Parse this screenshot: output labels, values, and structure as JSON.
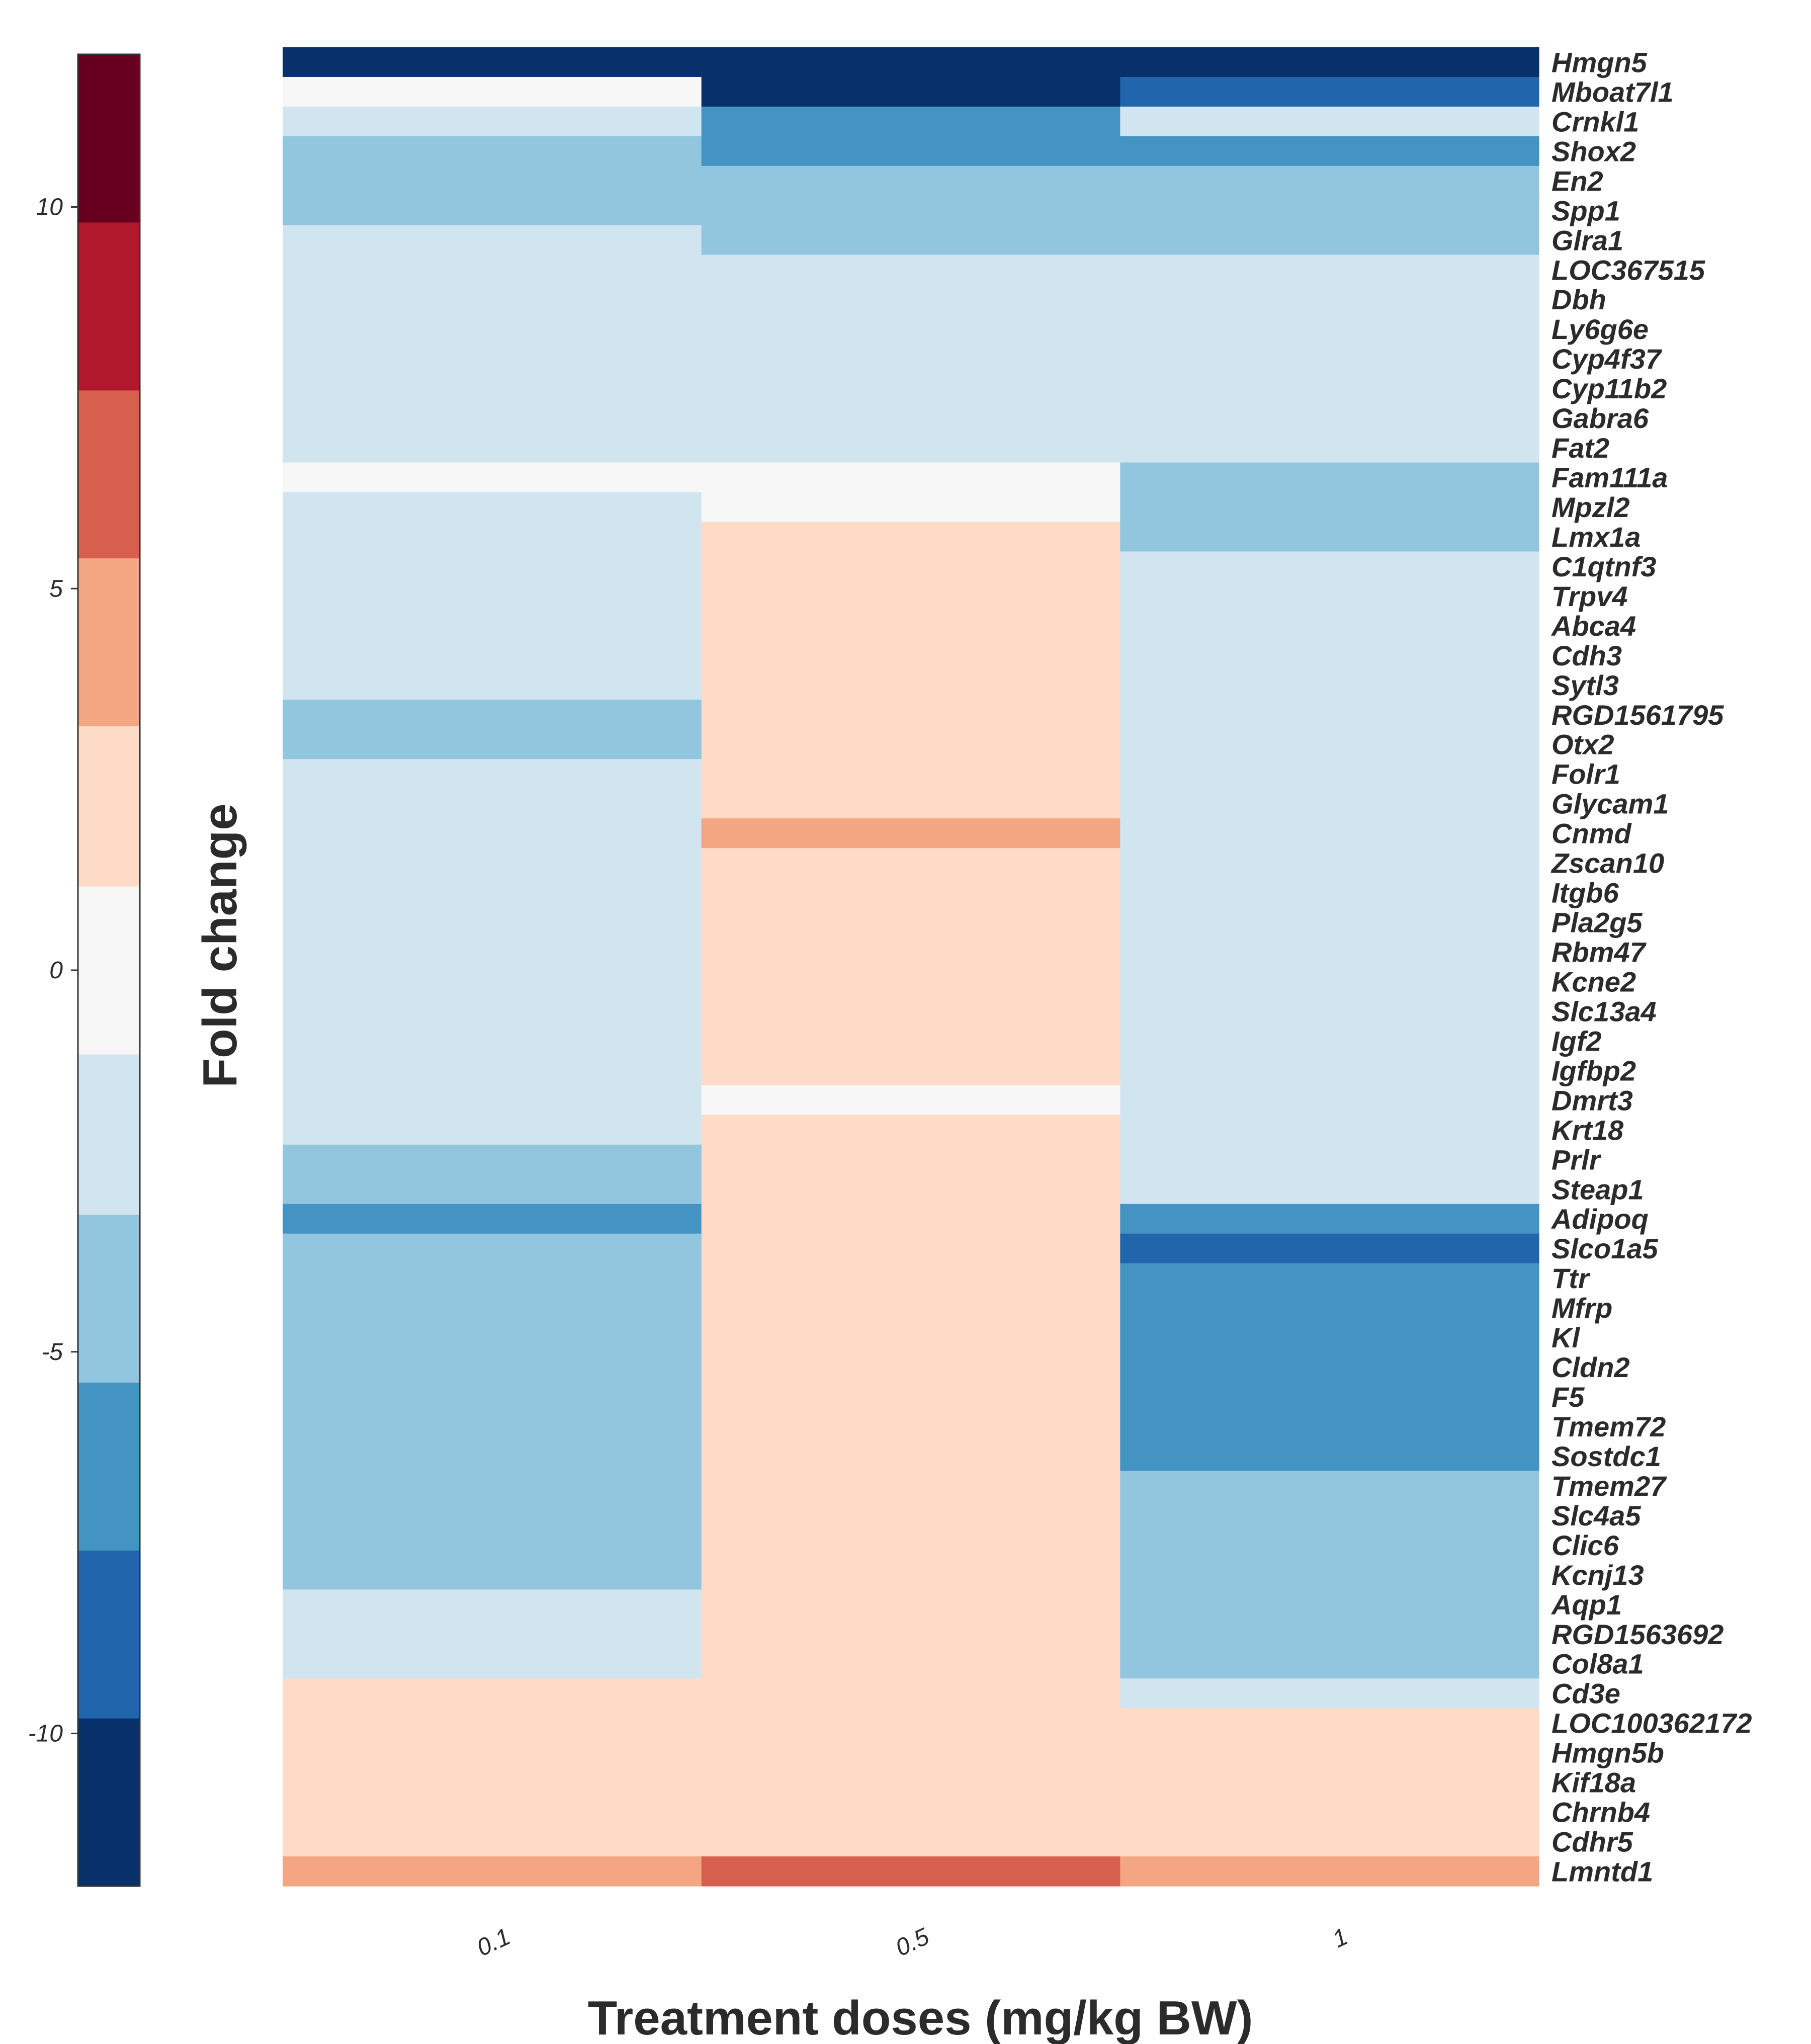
{
  "chart_data": {
    "type": "heatmap",
    "title": "",
    "xlabel": "Treatment doses (mg/kg BW)",
    "colorbar_label": "Fold change",
    "x": [
      "0.1",
      "0.5",
      "1"
    ],
    "colorbar_ticks": [
      {
        "value": 10,
        "label": "10"
      },
      {
        "value": 5,
        "label": "5"
      },
      {
        "value": 0,
        "label": "0"
      },
      {
        "value": -5,
        "label": "-5"
      },
      {
        "value": -10,
        "label": "-10"
      }
    ],
    "color_range": [
      -12,
      12
    ],
    "color_bins": [
      {
        "min": -12,
        "max": -9.8,
        "color": "#08306b"
      },
      {
        "min": -9.8,
        "max": -7.6,
        "color": "#2166ac"
      },
      {
        "min": -7.6,
        "max": -5.4,
        "color": "#4393c3"
      },
      {
        "min": -5.4,
        "max": -3.2,
        "color": "#92c5de"
      },
      {
        "min": -3.2,
        "max": -1.1,
        "color": "#d1e5f0"
      },
      {
        "min": -1.1,
        "max": 1.1,
        "color": "#f7f7f7"
      },
      {
        "min": 1.1,
        "max": 3.2,
        "color": "#fddbc7"
      },
      {
        "min": 3.2,
        "max": 5.4,
        "color": "#f4a582"
      },
      {
        "min": 5.4,
        "max": 7.6,
        "color": "#d6604d"
      },
      {
        "min": 7.6,
        "max": 9.8,
        "color": "#b2182b"
      },
      {
        "min": 9.8,
        "max": 12,
        "color": "#67001f"
      }
    ],
    "genes": [
      "Hmgn5",
      "Mboat7l1",
      "Crnkl1",
      "Shox2",
      "En2",
      "Spp1",
      "Glra1",
      "LOC367515",
      "Dbh",
      "Ly6g6e",
      "Cyp4f37",
      "Cyp11b2",
      "Gabra6",
      "Fat2",
      "Fam111a",
      "Mpzl2",
      "Lmx1a",
      "C1qtnf3",
      "Trpv4",
      "Abca4",
      "Cdh3",
      "Sytl3",
      "RGD1561795",
      "Otx2",
      "Folr1",
      "Glycam1",
      "Cnmd",
      "Zscan10",
      "Itgb6",
      "Pla2g5",
      "Rbm47",
      "Kcne2",
      "Slc13a4",
      "Igf2",
      "Igfbp2",
      "Dmrt3",
      "Krt18",
      "Prlr",
      "Steap1",
      "Adipoq",
      "Slco1a5",
      "Ttr",
      "Mfrp",
      "Kl",
      "Cldn2",
      "F5",
      "Tmem72",
      "Sostdc1",
      "Tmem27",
      "Slc4a5",
      "Clic6",
      "Kcnj13",
      "Aqp1",
      "RGD1563692",
      "Col8a1",
      "Cd3e",
      "LOC100362172",
      "Hmgn5b",
      "Kif18a",
      "Chrnb4",
      "Cdhr5",
      "Lmntd1"
    ],
    "values": [
      [
        -11,
        -11,
        -11
      ],
      [
        0,
        -11,
        -9
      ],
      [
        -2,
        -7,
        -2
      ],
      [
        -4,
        -7,
        -7
      ],
      [
        -4,
        -4,
        -4
      ],
      [
        -4,
        -4,
        -4
      ],
      [
        -2,
        -4,
        -4
      ],
      [
        -2,
        -2,
        -2
      ],
      [
        -2,
        -2,
        -2
      ],
      [
        -2,
        -2,
        -2
      ],
      [
        -2,
        -2,
        -2
      ],
      [
        -2,
        -2,
        -2
      ],
      [
        -2,
        -2,
        -2
      ],
      [
        -2,
        -2,
        -2
      ],
      [
        0,
        0,
        -4
      ],
      [
        -2,
        0,
        -4
      ],
      [
        -2,
        2,
        -4
      ],
      [
        -2,
        2,
        -2
      ],
      [
        -2,
        2,
        -2
      ],
      [
        -2,
        2,
        -2
      ],
      [
        -2,
        2,
        -2
      ],
      [
        -2,
        2,
        -2
      ],
      [
        -4,
        2,
        -2
      ],
      [
        -4,
        2,
        -2
      ],
      [
        -2,
        2,
        -2
      ],
      [
        -2,
        2,
        -2
      ],
      [
        -2,
        4,
        -2
      ],
      [
        -2,
        2,
        -2
      ],
      [
        -2,
        2,
        -2
      ],
      [
        -2,
        2,
        -2
      ],
      [
        -2,
        2,
        -2
      ],
      [
        -2,
        2,
        -2
      ],
      [
        -2,
        2,
        -2
      ],
      [
        -2,
        2,
        -2
      ],
      [
        -2,
        2,
        -2
      ],
      [
        -2,
        0,
        -2
      ],
      [
        -2,
        2,
        -2
      ],
      [
        -4,
        2,
        -2
      ],
      [
        -4,
        2,
        -2
      ],
      [
        -7,
        2,
        -7
      ],
      [
        -4,
        2,
        -9
      ],
      [
        -4,
        2,
        -7
      ],
      [
        -4,
        2,
        -7
      ],
      [
        -4,
        2,
        -7
      ],
      [
        -4,
        2,
        -7
      ],
      [
        -4,
        2,
        -7
      ],
      [
        -4,
        2,
        -7
      ],
      [
        -4,
        2,
        -7
      ],
      [
        -4,
        2,
        -4
      ],
      [
        -4,
        2,
        -4
      ],
      [
        -4,
        2,
        -4
      ],
      [
        -4,
        2,
        -4
      ],
      [
        -2,
        2,
        -4
      ],
      [
        -2,
        2,
        -4
      ],
      [
        -2,
        2,
        -4
      ],
      [
        2,
        2,
        -2
      ],
      [
        2,
        2,
        2
      ],
      [
        2,
        2,
        2
      ],
      [
        2,
        2,
        2
      ],
      [
        2,
        2,
        2
      ],
      [
        2,
        2,
        2
      ],
      [
        4,
        7,
        4
      ]
    ]
  }
}
